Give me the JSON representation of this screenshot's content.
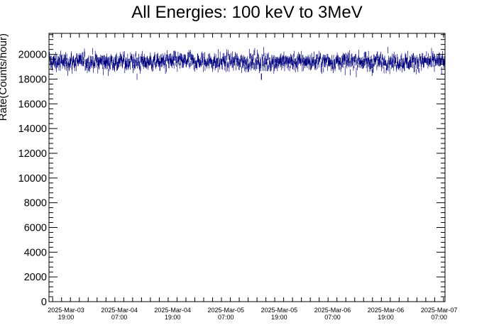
{
  "chart_data": {
    "type": "scatter",
    "title": "All Energies:  100 keV to 3MeV",
    "xlabel": "",
    "ylabel": "Rate(Counts/hour)",
    "ylim": [
      0,
      21700
    ],
    "yticks": [
      0,
      2000,
      4000,
      6000,
      8000,
      10000,
      12000,
      14000,
      16000,
      18000,
      20000
    ],
    "x_tick_labels": [
      {
        "date": "2025-Mar-03",
        "time": "19:00"
      },
      {
        "date": "2025-Mar-04",
        "time": "07:00"
      },
      {
        "date": "2025-Mar-04",
        "time": "19:00"
      },
      {
        "date": "2025-Mar-05",
        "time": "07:00"
      },
      {
        "date": "2025-Mar-05",
        "time": "19:00"
      },
      {
        "date": "2025-Mar-06",
        "time": "07:00"
      },
      {
        "date": "2025-Mar-06",
        "time": "19:00"
      },
      {
        "date": "2025-Mar-07",
        "time": "07:00"
      }
    ],
    "xlim": [
      "2025-03-03 15:10",
      "2025-03-07 08:20"
    ],
    "grid": false,
    "series_color": "#00007f",
    "mean_rate": 19400,
    "spread": 350,
    "minimum_dips": [
      {
        "time": "2025-03-04 11:00",
        "value": 17950
      },
      {
        "time": "2025-03-05 15:00",
        "value": 17950
      },
      {
        "time": "2025-03-06 11:00",
        "value": 18300
      }
    ],
    "maximum_peaks": [
      {
        "time": "2025-03-04 01:00",
        "value": 20500
      },
      {
        "time": "2025-03-06 19:30",
        "value": 20600
      }
    ]
  }
}
